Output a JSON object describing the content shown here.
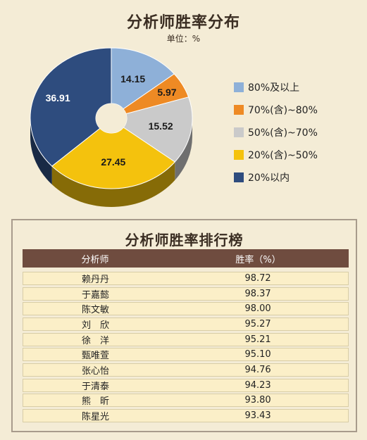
{
  "pie": {
    "title": "分析师胜率分布",
    "unit": "单位：%"
  },
  "table": {
    "title": "分析师胜率排行榜",
    "header_name": "分析师",
    "header_rate": "胜率（%）",
    "rows": [
      {
        "name": "赖丹丹",
        "rate": "98.72"
      },
      {
        "name": "于嘉懿",
        "rate": "98.37"
      },
      {
        "name": "陈文敏",
        "rate": "98.00"
      },
      {
        "name": "刘　欣",
        "rate": "95.27"
      },
      {
        "name": "徐　洋",
        "rate": "95.21"
      },
      {
        "name": "甄唯萱",
        "rate": "95.10"
      },
      {
        "name": "张心怡",
        "rate": "94.76"
      },
      {
        "name": "于清泰",
        "rate": "94.23"
      },
      {
        "name": "熊　昕",
        "rate": "93.80"
      },
      {
        "name": "陈星光",
        "rate": "93.43"
      }
    ]
  },
  "chart_data": [
    {
      "type": "pie",
      "title": "分析师胜率分布",
      "subtitle": "单位：%",
      "categories": [
        "80%及以上",
        "70%(含)~80%",
        "50%(含)~70%",
        "20%(含)~50%",
        "20%以内"
      ],
      "values": [
        14.15,
        5.97,
        15.52,
        27.45,
        36.91
      ],
      "colors": [
        "#8eb0d8",
        "#ee8a24",
        "#cacaca",
        "#f4c20d",
        "#2e4c7e"
      ],
      "legend_position": "right"
    },
    {
      "type": "table",
      "title": "分析师胜率排行榜",
      "columns": [
        "分析师",
        "胜率（%）"
      ],
      "rows": [
        [
          "赖丹丹",
          98.72
        ],
        [
          "于嘉懿",
          98.37
        ],
        [
          "陈文敏",
          98.0
        ],
        [
          "刘　欣",
          95.27
        ],
        [
          "徐　洋",
          95.21
        ],
        [
          "甄唯萱",
          95.1
        ],
        [
          "张心怡",
          94.76
        ],
        [
          "于清泰",
          94.23
        ],
        [
          "熊　昕",
          93.8
        ],
        [
          "陈星光",
          93.43
        ]
      ]
    }
  ]
}
